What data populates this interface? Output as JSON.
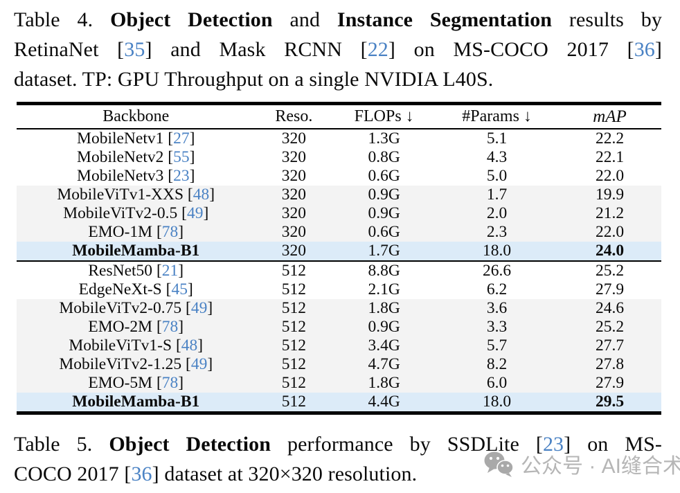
{
  "caption_table4": {
    "lines": [
      {
        "justify": true,
        "segs": [
          {
            "text": "Table 4. "
          },
          {
            "text": "Object Detection",
            "bold": true
          },
          {
            "text": " and "
          },
          {
            "text": "Instance Segmentation",
            "bold": true
          },
          {
            "text": " results by"
          }
        ]
      },
      {
        "justify": true,
        "segs": [
          {
            "text": "RetinaNet ["
          },
          {
            "cite": "35"
          },
          {
            "text": "] and Mask RCNN ["
          },
          {
            "cite": "22"
          },
          {
            "text": "] on MS-COCO 2017 ["
          },
          {
            "cite": "36"
          },
          {
            "text": "]"
          }
        ]
      },
      {
        "justify": false,
        "segs": [
          {
            "text": "dataset. TP: GPU Throughput on a single NVIDIA L40S."
          }
        ]
      }
    ]
  },
  "table": {
    "headers": [
      {
        "text": "Backbone"
      },
      {
        "text": "Reso."
      },
      {
        "text": "FLOPs ↓"
      },
      {
        "text": "#Params ↓"
      },
      {
        "text": "mAP",
        "italic": true
      }
    ],
    "rows": [
      {
        "name": "MobileNetv1",
        "cite": "27",
        "reso": "320",
        "flops": "1.3G",
        "params": "5.1",
        "map": "22.2",
        "style": "plain"
      },
      {
        "name": "MobileNetv2",
        "cite": "55",
        "reso": "320",
        "flops": "0.8G",
        "params": "4.3",
        "map": "22.1",
        "style": "plain"
      },
      {
        "name": "MobileNetv3",
        "cite": "23",
        "reso": "320",
        "flops": "0.6G",
        "params": "5.0",
        "map": "22.0",
        "style": "plain"
      },
      {
        "name": "MobileViTv1-XXS",
        "cite": "48",
        "reso": "320",
        "flops": "0.9G",
        "params": "1.7",
        "map": "19.9",
        "style": "gray"
      },
      {
        "name": "MobileViTv2-0.5",
        "cite": "49",
        "reso": "320",
        "flops": "0.9G",
        "params": "2.0",
        "map": "21.2",
        "style": "gray"
      },
      {
        "name": "EMO-1M",
        "cite": "78",
        "reso": "320",
        "flops": "0.6G",
        "params": "2.3",
        "map": "22.0",
        "style": "gray"
      },
      {
        "name": "MobileMamba-B1",
        "cite": null,
        "reso": "320",
        "flops": "1.7G",
        "params": "18.0",
        "map": "24.0",
        "style": "ours",
        "bold": true
      },
      {
        "name": "ResNet50",
        "cite": "21",
        "reso": "512",
        "flops": "8.8G",
        "params": "26.6",
        "map": "25.2",
        "style": "plain",
        "sep": true
      },
      {
        "name": "EdgeNeXt-S",
        "cite": "45",
        "reso": "512",
        "flops": "2.1G",
        "params": "6.2",
        "map": "27.9",
        "style": "plain"
      },
      {
        "name": "MobileViTv2-0.75",
        "cite": "49",
        "reso": "512",
        "flops": "1.8G",
        "params": "3.6",
        "map": "24.6",
        "style": "gray"
      },
      {
        "name": "EMO-2M",
        "cite": "78",
        "reso": "512",
        "flops": "0.9G",
        "params": "3.3",
        "map": "25.2",
        "style": "gray"
      },
      {
        "name": "MobileViTv1-S",
        "cite": "48",
        "reso": "512",
        "flops": "3.4G",
        "params": "5.7",
        "map": "27.7",
        "style": "gray"
      },
      {
        "name": "MobileViTv2-1.25",
        "cite": "49",
        "reso": "512",
        "flops": "4.7G",
        "params": "8.2",
        "map": "27.8",
        "style": "gray"
      },
      {
        "name": "EMO-5M",
        "cite": "78",
        "reso": "512",
        "flops": "1.8G",
        "params": "6.0",
        "map": "27.9",
        "style": "gray"
      },
      {
        "name": "MobileMamba-B1",
        "cite": null,
        "reso": "512",
        "flops": "4.4G",
        "params": "18.0",
        "map": "29.5",
        "style": "ours",
        "bold": true
      }
    ]
  },
  "caption_table5": {
    "lines": [
      {
        "justify": true,
        "segs": [
          {
            "text": "Table 5. "
          },
          {
            "text": "Object Detection",
            "bold": true
          },
          {
            "text": " performance by SSDLite ["
          },
          {
            "cite": "23"
          },
          {
            "text": "] on MS-"
          }
        ]
      },
      {
        "justify": false,
        "segs": [
          {
            "text": "COCO 2017 ["
          },
          {
            "cite": "36"
          },
          {
            "text": "] dataset at 320×320 resolution."
          }
        ]
      }
    ]
  },
  "watermark": {
    "text": "公众号 · AI缝合术",
    "icon": "wechat-icon"
  },
  "colors": {
    "cite_blue": "#4a82c4",
    "row_gray": "#f3f3f3",
    "row_ours": "#dcebf8",
    "watermark_gray": "#b6b6b6"
  }
}
